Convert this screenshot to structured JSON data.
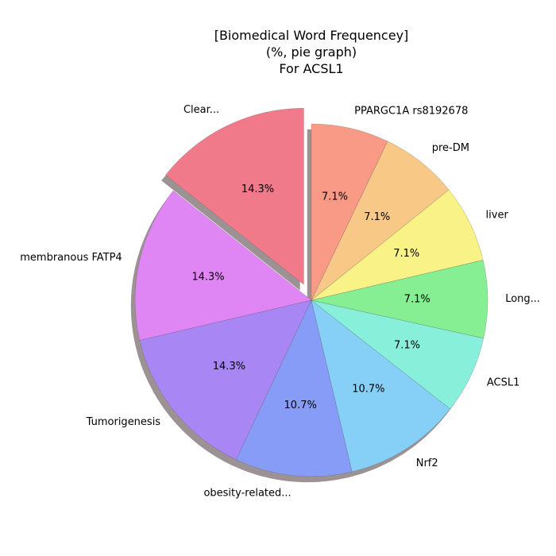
{
  "chart_data": {
    "type": "pie",
    "title_lines": [
      "[Biomedical Word Frequencey]",
      "(%, pie graph)",
      "For ACSL1"
    ],
    "slices": [
      {
        "label": "Clear...",
        "value": 14.3,
        "pct_label": "14.3%",
        "color": "#f07a8a",
        "explode": true
      },
      {
        "label": "membranous FATP4",
        "value": 14.3,
        "pct_label": "14.3%",
        "color": "#df85f4",
        "explode": false
      },
      {
        "label": "Tumorigenesis",
        "value": 14.3,
        "pct_label": "14.3%",
        "color": "#a886f4",
        "explode": false
      },
      {
        "label": "obesity-related...",
        "value": 10.7,
        "pct_label": "10.7%",
        "color": "#869cf6",
        "explode": false
      },
      {
        "label": "Nrf2",
        "value": 10.7,
        "pct_label": "10.7%",
        "color": "#86cff6",
        "explode": false
      },
      {
        "label": "ACSL1",
        "value": 7.1,
        "pct_label": "7.1%",
        "color": "#87efda",
        "explode": false
      },
      {
        "label": "Long...",
        "value": 7.1,
        "pct_label": "7.1%",
        "color": "#87ef93",
        "explode": false
      },
      {
        "label": "liver",
        "value": 7.1,
        "pct_label": "7.1%",
        "color": "#f9f287",
        "explode": false
      },
      {
        "label": "pre-DM",
        "value": 7.1,
        "pct_label": "7.1%",
        "color": "#f8c887",
        "explode": false
      },
      {
        "label": "PPARGC1A rs8192678",
        "value": 7.1,
        "pct_label": "7.1%",
        "color": "#f99a87",
        "explode": false
      }
    ],
    "start_angle_deg": 90,
    "direction": "counterclockwise",
    "shadow": true,
    "legend": "none"
  }
}
